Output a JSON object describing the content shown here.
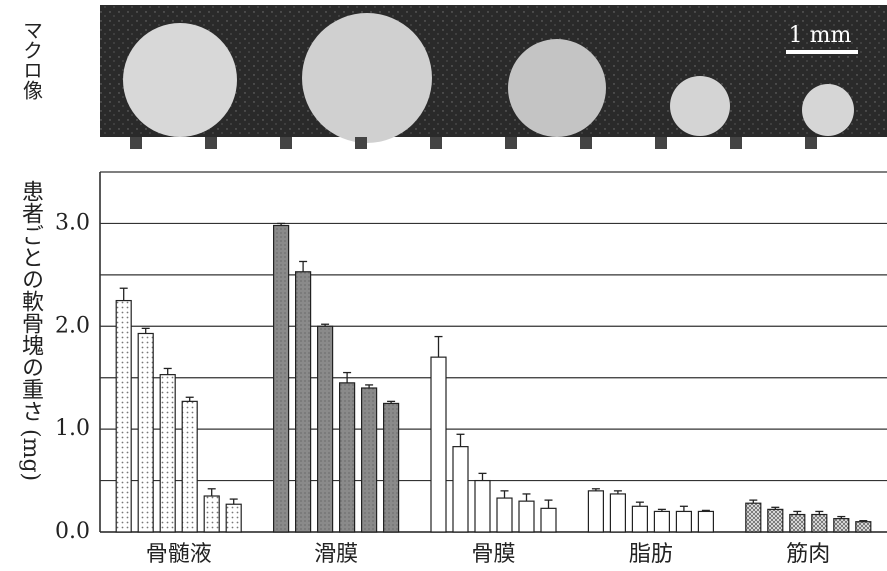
{
  "chart_data": {
    "type": "bar",
    "image_label": "マクロ像",
    "scale_label": "1 mm",
    "y_label": "患者ごとの軟骨塊の重さ (mg)",
    "ylim": [
      0,
      3.5
    ],
    "yticks": [
      {
        "value": 0,
        "label": "0.0"
      },
      {
        "value": 1,
        "label": "1.0"
      },
      {
        "value": 2,
        "label": "2.0"
      },
      {
        "value": 3,
        "label": "3.0"
      }
    ],
    "minor_yticks": [
      0.5,
      1.5,
      2.5,
      3.5
    ],
    "grid": true,
    "groups": [
      {
        "name": "骨髄液",
        "fill": "dots",
        "values": [
          2.25,
          1.93,
          1.53,
          1.27,
          0.35,
          0.27
        ],
        "errors": [
          0.12,
          0.05,
          0.06,
          0.04,
          0.07,
          0.05
        ]
      },
      {
        "name": "滑膜",
        "fill": "dark",
        "values": [
          2.98,
          2.53,
          2.0,
          1.45,
          1.4,
          1.25
        ],
        "errors": [
          0.02,
          0.1,
          0.02,
          0.1,
          0.03,
          0.02
        ]
      },
      {
        "name": "骨膜",
        "fill": "white",
        "values": [
          1.7,
          0.83,
          0.5,
          0.33,
          0.3,
          0.23
        ],
        "errors": [
          0.2,
          0.12,
          0.07,
          0.07,
          0.07,
          0.08
        ]
      },
      {
        "name": "脂肪",
        "fill": "white",
        "values": [
          0.4,
          0.37,
          0.25,
          0.2,
          0.2,
          0.2
        ],
        "errors": [
          0.02,
          0.03,
          0.04,
          0.02,
          0.05,
          0.01
        ]
      },
      {
        "name": "筋肉",
        "fill": "hatch",
        "values": [
          0.28,
          0.22,
          0.17,
          0.17,
          0.13,
          0.1
        ],
        "errors": [
          0.03,
          0.02,
          0.03,
          0.03,
          0.02,
          0.01
        ]
      }
    ]
  }
}
